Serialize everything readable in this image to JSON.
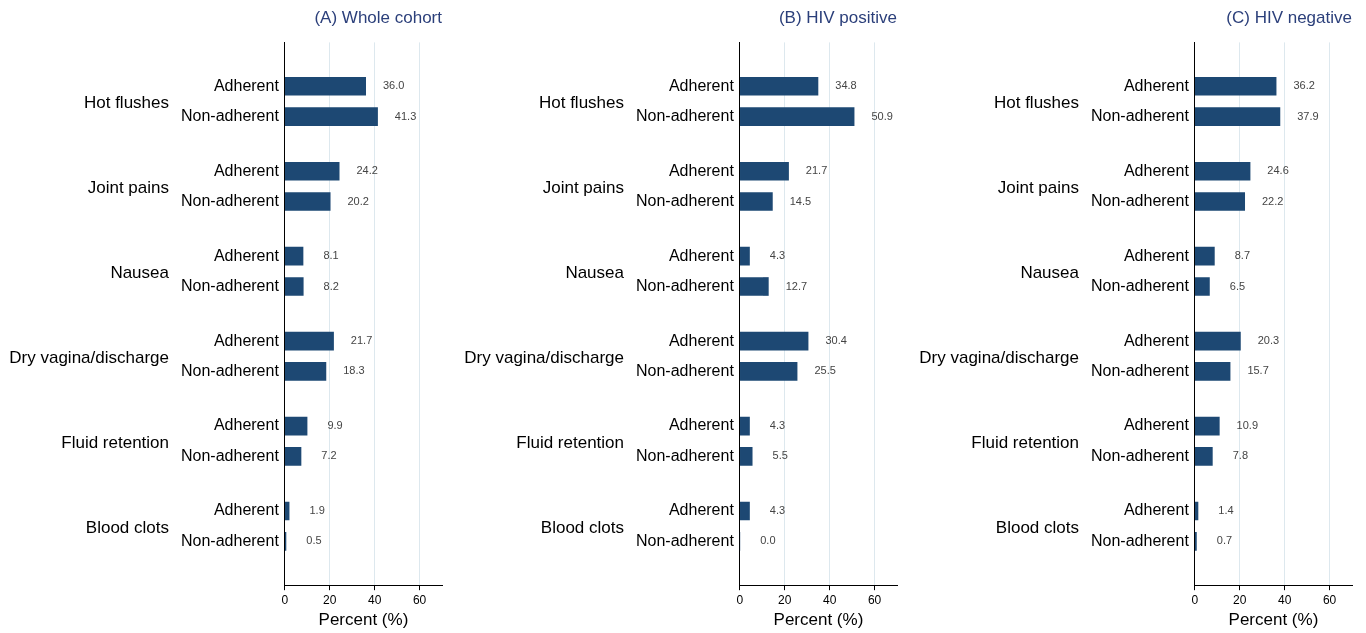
{
  "chart_data": [
    {
      "type": "bar",
      "orientation": "horizontal",
      "title": "(A) Whole cohort",
      "xlabel": "Percent (%)",
      "categories": [
        "Adherent",
        "Non-adherent",
        "Adherent",
        "Non-adherent",
        "Adherent",
        "Non-adherent",
        "Adherent",
        "Non-adherent",
        "Adherent",
        "Non-adherent",
        "Adherent",
        "Non-adherent"
      ],
      "values": [
        36.0,
        41.3,
        24.2,
        20.2,
        8.1,
        8.2,
        21.7,
        18.3,
        9.9,
        7.2,
        1.9,
        0.5
      ],
      "value_labels": [
        "36.0",
        "41.3",
        "24.2",
        "20.2",
        "8.1",
        "8.2",
        "21.7",
        "18.3",
        "9.9",
        "7.2",
        "1.9",
        "0.5"
      ],
      "annotations": [
        "Hot flushes",
        "Joint pains",
        "Nausea",
        "Dry vagina/discharge",
        "Fluid retention",
        "Blood clots"
      ],
      "color": "#1d4873",
      "xlim": [
        0,
        70
      ],
      "xticks": [
        0,
        20,
        40,
        60
      ],
      "grid": "x",
      "legend": false
    },
    {
      "type": "bar",
      "orientation": "horizontal",
      "title": "(B) HIV positive",
      "xlabel": "Percent (%)",
      "categories": [
        "Adherent",
        "Non-adherent",
        "Adherent",
        "Non-adherent",
        "Adherent",
        "Non-adherent",
        "Adherent",
        "Non-adherent",
        "Adherent",
        "Non-adherent",
        "Adherent",
        "Non-adherent"
      ],
      "values": [
        34.8,
        50.9,
        21.7,
        14.5,
        4.3,
        12.7,
        30.4,
        25.5,
        4.3,
        5.5,
        4.3,
        0.0
      ],
      "value_labels": [
        "34.8",
        "50.9",
        "21.7",
        "14.5",
        "4.3",
        "12.7",
        "30.4",
        "25.5",
        "4.3",
        "5.5",
        "4.3",
        "0.0"
      ],
      "annotations": [
        "Hot flushes",
        "Joint pains",
        "Nausea",
        "Dry vagina/discharge",
        "Fluid retention",
        "Blood clots"
      ],
      "color": "#1d4873",
      "xlim": [
        0,
        70
      ],
      "xticks": [
        0,
        20,
        40,
        60
      ],
      "grid": "x",
      "legend": false
    },
    {
      "type": "bar",
      "orientation": "horizontal",
      "title": "(C) HIV negative",
      "xlabel": "Percent (%)",
      "categories": [
        "Adherent",
        "Non-adherent",
        "Adherent",
        "Non-adherent",
        "Adherent",
        "Non-adherent",
        "Adherent",
        "Non-adherent",
        "Adherent",
        "Non-adherent",
        "Adherent",
        "Non-adherent"
      ],
      "values": [
        36.2,
        37.9,
        24.6,
        22.2,
        8.7,
        6.5,
        20.3,
        15.7,
        10.9,
        7.8,
        1.4,
        0.7
      ],
      "value_labels": [
        "36.2",
        "37.9",
        "24.6",
        "22.2",
        "8.7",
        "6.5",
        "20.3",
        "15.7",
        "10.9",
        "7.8",
        "1.4",
        "0.7"
      ],
      "annotations": [
        "Hot flushes",
        "Joint pains",
        "Nausea",
        "Dry vagina/discharge",
        "Fluid retention",
        "Blood clots"
      ],
      "color": "#1d4873",
      "xlim": [
        0,
        70
      ],
      "xticks": [
        0,
        20,
        40,
        60
      ],
      "grid": "x",
      "legend": false
    }
  ]
}
